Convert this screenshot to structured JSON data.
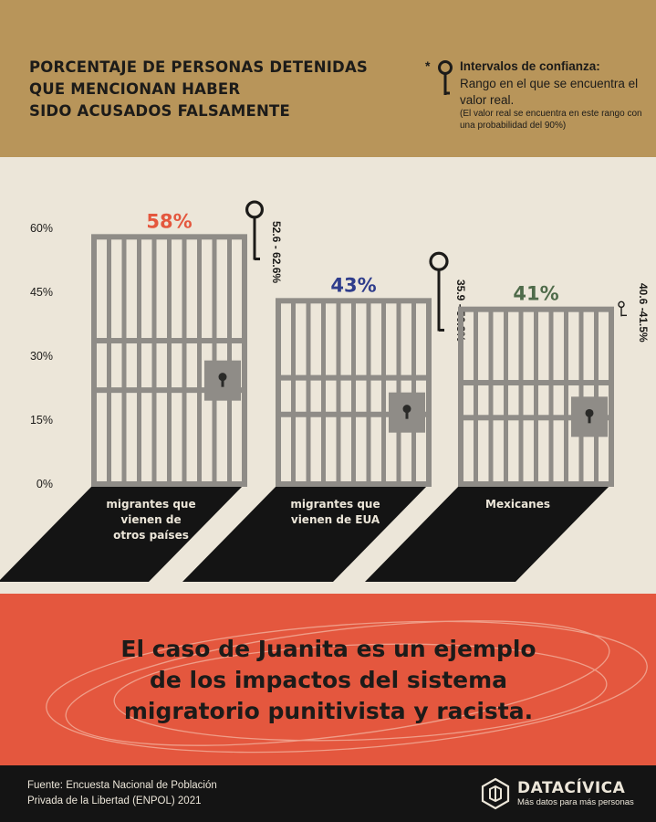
{
  "title_lines": [
    "PORCENTAJE DE PERSONAS DETENIDAS",
    "QUE MENCIONAN HABER",
    "SIDO ACUSADOS FALSAMENTE"
  ],
  "legend": {
    "star": "*",
    "heading": "Intervalos de confianza:",
    "description": "Rango en el que se encuentra el valor real.",
    "note": "(El valor real se encuentra en este rango con una probabilidad del 90%)"
  },
  "chart_data": {
    "type": "bar",
    "categories": [
      "migrantes que vienen de otros países",
      "migrantes que vienen de EUA",
      "Mexicanes"
    ],
    "category_lines": [
      [
        "migrantes que",
        "vienen de",
        "otros países"
      ],
      [
        "migrantes que",
        "vienen de EUA"
      ],
      [
        "Mexicanes"
      ]
    ],
    "values": [
      58,
      43,
      41
    ],
    "value_labels": [
      "58%",
      "43%",
      "41%"
    ],
    "confidence_intervals": [
      [
        52.6,
        62.6
      ],
      [
        35.9,
        50.3
      ],
      [
        40.6,
        41.5
      ]
    ],
    "ci_labels": [
      "52.6 - 62.6%",
      "35.9 - 50.3%",
      "40.6 -41.5%"
    ],
    "ylim": [
      0,
      60
    ],
    "yticks": [
      0,
      15,
      30,
      45,
      60
    ],
    "ytick_labels": [
      "0%",
      "15%",
      "30%",
      "45%",
      "60%"
    ],
    "colors": {
      "value_labels": [
        "#e4573e",
        "#2f3d8c",
        "#4f6b4a"
      ],
      "bars": "#8f8c87",
      "shadow": "#141414"
    },
    "grid": false
  },
  "message_lines": [
    "El caso de Juanita es un ejemplo",
    "de los impactos del sistema",
    "migratorio punitivista y racista."
  ],
  "source_lines": [
    "Fuente: Encuesta Nacional de Población",
    "Privada de la Libertad (ENPOL) 2021"
  ],
  "brand": {
    "name": "DATACÍVICA",
    "tagline": "Más datos para más personas"
  }
}
